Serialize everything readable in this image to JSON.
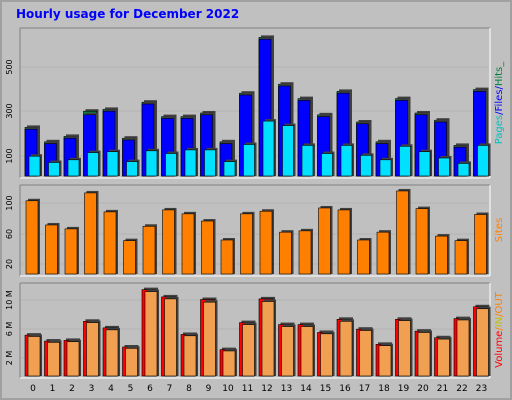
{
  "page": {
    "title": "Hourly usage for December 2022"
  },
  "colors": {
    "background": "#c0c0c0",
    "title": "#0000ff",
    "pages": "#00e0ff",
    "files": "#0000ff",
    "hits": "#008040",
    "sites": "#ff8000",
    "volume": "#ff0000",
    "in_label": "#c0c000",
    "out_label": "#ff8000",
    "volume_bar": "#f0a050"
  },
  "chart_data": [
    {
      "type": "bar",
      "name": "hits-files-pages",
      "categories": [
        "0",
        "1",
        "2",
        "3",
        "4",
        "5",
        "6",
        "7",
        "8",
        "9",
        "10",
        "11",
        "12",
        "13",
        "14",
        "15",
        "16",
        "17",
        "18",
        "19",
        "20",
        "21",
        "22",
        "23"
      ],
      "series": [
        {
          "name": "Hits",
          "values": [
            270,
            190,
            220,
            360,
            370,
            210,
            410,
            330,
            330,
            350,
            190,
            460,
            770,
            510,
            430,
            340,
            470,
            300,
            190,
            430,
            350,
            310,
            170,
            480
          ]
        },
        {
          "name": "Files",
          "values": [
            260,
            180,
            210,
            340,
            360,
            200,
            400,
            320,
            320,
            340,
            180,
            450,
            760,
            500,
            420,
            330,
            460,
            290,
            180,
            420,
            340,
            300,
            160,
            470
          ]
        },
        {
          "name": "Pages",
          "values": [
            110,
            75,
            90,
            130,
            135,
            80,
            140,
            125,
            145,
            145,
            80,
            175,
            305,
            280,
            170,
            125,
            170,
            115,
            90,
            165,
            135,
            100,
            70,
            170
          ]
        }
      ],
      "ylim": [
        0,
        800
      ],
      "yticks": [
        "100",
        "300",
        "500"
      ],
      "legend": [
        {
          "text": "Pages",
          "color": "#00c0c0"
        },
        {
          "text": "/",
          "color": "#0000ff"
        },
        {
          "text": "Files",
          "color": "#0000ff"
        },
        {
          "text": "/",
          "color": "#0000ff"
        },
        {
          "text": "Hits",
          "color": "#008040"
        },
        {
          "text": "_",
          "color": "#008040"
        }
      ]
    },
    {
      "type": "bar",
      "name": "sites",
      "categories": [
        "0",
        "1",
        "2",
        "3",
        "4",
        "5",
        "6",
        "7",
        "8",
        "9",
        "10",
        "11",
        "12",
        "13",
        "14",
        "15",
        "16",
        "17",
        "18",
        "19",
        "20",
        "21",
        "22",
        "23"
      ],
      "series": [
        {
          "name": "Sites",
          "values": [
            112,
            75,
            69,
            124,
            95,
            51,
            73,
            98,
            92,
            81,
            52,
            92,
            96,
            64,
            66,
            101,
            98,
            52,
            64,
            127,
            100,
            58,
            51,
            91
          ]
        }
      ],
      "ylim": [
        0,
        130
      ],
      "yticks": [
        "20",
        "60",
        "100"
      ],
      "legend": [
        {
          "text": "Sites",
          "color": "#ff8000"
        }
      ]
    },
    {
      "type": "bar",
      "name": "volume",
      "categories": [
        "0",
        "1",
        "2",
        "3",
        "4",
        "5",
        "6",
        "7",
        "8",
        "9",
        "10",
        "11",
        "12",
        "13",
        "14",
        "15",
        "16",
        "17",
        "18",
        "19",
        "20",
        "21",
        "22",
        "23"
      ],
      "series": [
        {
          "name": "Volume",
          "values": [
            6.2,
            5.3,
            5.4,
            8.3,
            7.3,
            4.4,
            13.1,
            12.0,
            6.3,
            11.6,
            4.0,
            8.1,
            11.7,
            7.8,
            7.8,
            6.6,
            8.6,
            7.1,
            4.8,
            8.6,
            6.8,
            5.8,
            8.7,
            10.5
          ]
        },
        {
          "name": "IN",
          "values": [
            6.0,
            5.1,
            5.2,
            8.1,
            7.0,
            4.2,
            12.8,
            11.7,
            6.1,
            11.2,
            3.8,
            7.8,
            11.3,
            7.5,
            7.5,
            6.4,
            8.3,
            6.9,
            4.6,
            8.4,
            6.6,
            5.6,
            8.5,
            10.2
          ]
        }
      ],
      "ylim": [
        0,
        13.5
      ],
      "yticks": [
        "2 M",
        "6 M",
        "10 M"
      ],
      "legend": [
        {
          "text": "Volume",
          "color": "#ff0000"
        },
        {
          "text": "/",
          "color": "#ff8000"
        },
        {
          "text": "IN",
          "color": "#c0c000"
        },
        {
          "text": "/",
          "color": "#ff8000"
        },
        {
          "text": "OUT",
          "color": "#ff8000"
        }
      ]
    }
  ]
}
